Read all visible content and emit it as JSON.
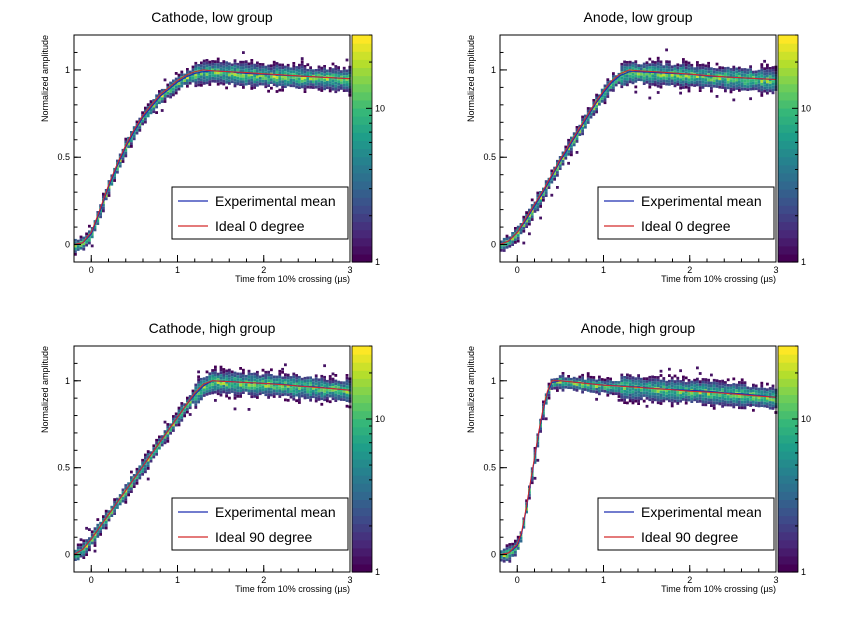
{
  "chart_data": [
    {
      "type": "heatmap",
      "title": "Cathode, low group",
      "xlabel": "Time from 10% crossing (µs)",
      "ylabel": "Normalized amplitude",
      "xlim": [
        -0.2,
        3.0
      ],
      "ylim": [
        -0.1,
        1.2
      ],
      "xticks": [
        "0",
        "1",
        "2",
        "3"
      ],
      "yticks": [
        "0",
        "0.5",
        "1"
      ],
      "colorbar": {
        "scale": "log",
        "ticks": [
          "1",
          "10"
        ],
        "range": [
          1,
          30
        ]
      },
      "legend": {
        "placement": "bottom-right",
        "entries": [
          "Experimental mean",
          "Ideal 0 degree"
        ]
      },
      "series": [
        {
          "name": "Experimental mean",
          "color": "#1f2db0",
          "x": [
            -0.2,
            -0.1,
            0.0,
            0.1,
            0.2,
            0.3,
            0.4,
            0.5,
            0.6,
            0.7,
            0.8,
            0.9,
            1.0,
            1.1,
            1.2,
            1.3,
            1.4,
            1.6,
            1.8,
            2.0,
            2.2,
            2.4,
            2.6,
            2.8,
            3.0
          ],
          "y": [
            0.0,
            0.01,
            0.06,
            0.19,
            0.33,
            0.45,
            0.56,
            0.65,
            0.73,
            0.79,
            0.85,
            0.89,
            0.93,
            0.96,
            0.98,
            0.99,
            0.995,
            0.99,
            0.98,
            0.975,
            0.97,
            0.965,
            0.96,
            0.955,
            0.95
          ]
        },
        {
          "name": "Ideal 0 degree",
          "color": "#d42a2a",
          "x": [
            -0.2,
            -0.1,
            0.0,
            0.1,
            0.2,
            0.3,
            0.4,
            0.5,
            0.6,
            0.7,
            0.8,
            0.9,
            1.0,
            1.1,
            1.2,
            1.3,
            1.4,
            1.6,
            1.8,
            2.0,
            2.2,
            2.4,
            2.6,
            2.8,
            3.0
          ],
          "y": [
            0.0,
            0.01,
            0.07,
            0.2,
            0.34,
            0.46,
            0.57,
            0.66,
            0.74,
            0.8,
            0.86,
            0.9,
            0.94,
            0.97,
            0.99,
            1.0,
            0.995,
            0.99,
            0.985,
            0.978,
            0.972,
            0.966,
            0.96,
            0.955,
            0.95
          ]
        }
      ]
    },
    {
      "type": "heatmap",
      "title": "Anode, low group",
      "xlabel": "Time from 10% crossing (µs)",
      "ylabel": "Normalized amplitude",
      "xlim": [
        -0.2,
        3.0
      ],
      "ylim": [
        -0.1,
        1.2
      ],
      "xticks": [
        "0",
        "1",
        "2",
        "3"
      ],
      "yticks": [
        "0",
        "0.5",
        "1"
      ],
      "colorbar": {
        "scale": "log",
        "ticks": [
          "1",
          "10"
        ],
        "range": [
          1,
          30
        ]
      },
      "legend": {
        "placement": "bottom-right",
        "entries": [
          "Experimental mean",
          "Ideal 0 degree"
        ]
      },
      "series": [
        {
          "name": "Experimental mean",
          "color": "#1f2db0",
          "x": [
            -0.2,
            -0.1,
            0.0,
            0.1,
            0.2,
            0.3,
            0.4,
            0.5,
            0.6,
            0.7,
            0.8,
            0.9,
            1.0,
            1.1,
            1.2,
            1.3,
            1.4,
            1.6,
            1.8,
            2.0,
            2.2,
            2.4,
            2.6,
            2.8,
            3.0
          ],
          "y": [
            0.0,
            0.02,
            0.07,
            0.14,
            0.22,
            0.3,
            0.39,
            0.48,
            0.56,
            0.64,
            0.72,
            0.8,
            0.87,
            0.93,
            0.97,
            0.99,
            0.99,
            0.985,
            0.98,
            0.975,
            0.965,
            0.96,
            0.955,
            0.95,
            0.945
          ]
        },
        {
          "name": "Ideal 0 degree",
          "color": "#d42a2a",
          "x": [
            -0.2,
            -0.1,
            0.0,
            0.1,
            0.2,
            0.3,
            0.4,
            0.5,
            0.6,
            0.7,
            0.8,
            0.9,
            1.0,
            1.1,
            1.2,
            1.3,
            1.4,
            1.6,
            1.8,
            2.0,
            2.2,
            2.4,
            2.6,
            2.8,
            3.0
          ],
          "y": [
            0.0,
            0.02,
            0.07,
            0.15,
            0.23,
            0.31,
            0.4,
            0.49,
            0.57,
            0.65,
            0.73,
            0.81,
            0.88,
            0.94,
            0.98,
            1.0,
            0.995,
            0.99,
            0.983,
            0.976,
            0.968,
            0.96,
            0.955,
            0.95,
            0.945
          ]
        }
      ]
    },
    {
      "type": "heatmap",
      "title": "Cathode, high group",
      "xlabel": "Time from 10% crossing (µs)",
      "ylabel": "Normalized amplitude",
      "xlim": [
        -0.2,
        3.0
      ],
      "ylim": [
        -0.1,
        1.2
      ],
      "xticks": [
        "0",
        "1",
        "2",
        "3"
      ],
      "yticks": [
        "0",
        "0.5",
        "1"
      ],
      "colorbar": {
        "scale": "log",
        "ticks": [
          "1",
          "10"
        ],
        "range": [
          1,
          30
        ]
      },
      "legend": {
        "placement": "bottom-right",
        "entries": [
          "Experimental mean",
          "Ideal 90 degree"
        ]
      },
      "series": [
        {
          "name": "Experimental mean",
          "color": "#1f2db0",
          "x": [
            -0.2,
            -0.1,
            0.0,
            0.1,
            0.2,
            0.3,
            0.4,
            0.5,
            0.6,
            0.7,
            0.8,
            0.9,
            1.0,
            1.1,
            1.2,
            1.3,
            1.4,
            1.6,
            1.8,
            2.0,
            2.2,
            2.4,
            2.6,
            2.8,
            3.0
          ],
          "y": [
            0.0,
            0.03,
            0.09,
            0.16,
            0.23,
            0.3,
            0.37,
            0.44,
            0.51,
            0.58,
            0.65,
            0.72,
            0.79,
            0.86,
            0.92,
            0.97,
            1.0,
            0.995,
            0.99,
            0.985,
            0.98,
            0.97,
            0.965,
            0.955,
            0.945
          ]
        },
        {
          "name": "Ideal 90 degree",
          "color": "#d42a2a",
          "x": [
            -0.2,
            -0.1,
            0.0,
            0.1,
            0.2,
            0.3,
            0.4,
            0.5,
            0.6,
            0.7,
            0.8,
            0.9,
            1.0,
            1.1,
            1.2,
            1.3,
            1.4,
            1.6,
            1.8,
            2.0,
            2.2,
            2.4,
            2.6,
            2.8,
            3.0
          ],
          "y": [
            0.0,
            0.03,
            0.09,
            0.16,
            0.23,
            0.3,
            0.37,
            0.44,
            0.51,
            0.58,
            0.65,
            0.72,
            0.79,
            0.86,
            0.93,
            0.98,
            1.0,
            0.995,
            0.99,
            0.985,
            0.978,
            0.97,
            0.962,
            0.955,
            0.945
          ]
        }
      ]
    },
    {
      "type": "heatmap",
      "title": "Anode, high group",
      "xlabel": "Time from 10% crossing (µs)",
      "ylabel": "Normalized amplitude",
      "xlim": [
        -0.2,
        3.0
      ],
      "ylim": [
        -0.1,
        1.2
      ],
      "xticks": [
        "0",
        "1",
        "2",
        "3"
      ],
      "yticks": [
        "0",
        "0.5",
        "1"
      ],
      "colorbar": {
        "scale": "log",
        "ticks": [
          "1",
          "10"
        ],
        "range": [
          1,
          30
        ]
      },
      "legend": {
        "placement": "bottom-right",
        "entries": [
          "Experimental mean",
          "Ideal 90 degree"
        ]
      },
      "series": [
        {
          "name": "Experimental mean",
          "color": "#1f2db0",
          "x": [
            -0.2,
            -0.1,
            0.0,
            0.05,
            0.1,
            0.15,
            0.2,
            0.25,
            0.3,
            0.35,
            0.4,
            0.5,
            0.6,
            0.8,
            1.0,
            1.2,
            1.4,
            1.6,
            1.8,
            2.0,
            2.2,
            2.4,
            2.6,
            2.8,
            3.0
          ],
          "y": [
            0.0,
            0.01,
            0.05,
            0.12,
            0.25,
            0.4,
            0.55,
            0.7,
            0.83,
            0.93,
            0.99,
            1.0,
            0.995,
            0.985,
            0.975,
            0.97,
            0.965,
            0.955,
            0.95,
            0.945,
            0.94,
            0.93,
            0.925,
            0.915,
            0.905
          ]
        },
        {
          "name": "Ideal 90 degree",
          "color": "#d42a2a",
          "x": [
            -0.2,
            -0.1,
            0.0,
            0.05,
            0.1,
            0.15,
            0.2,
            0.25,
            0.3,
            0.35,
            0.4,
            0.5,
            0.6,
            0.8,
            1.0,
            1.2,
            1.4,
            1.6,
            1.8,
            2.0,
            2.2,
            2.4,
            2.6,
            2.8,
            3.0
          ],
          "y": [
            0.0,
            0.01,
            0.06,
            0.13,
            0.26,
            0.41,
            0.56,
            0.71,
            0.84,
            0.94,
            1.0,
            1.0,
            0.995,
            0.985,
            0.975,
            0.968,
            0.962,
            0.955,
            0.948,
            0.94,
            0.935,
            0.928,
            0.92,
            0.912,
            0.905
          ]
        }
      ]
    }
  ]
}
